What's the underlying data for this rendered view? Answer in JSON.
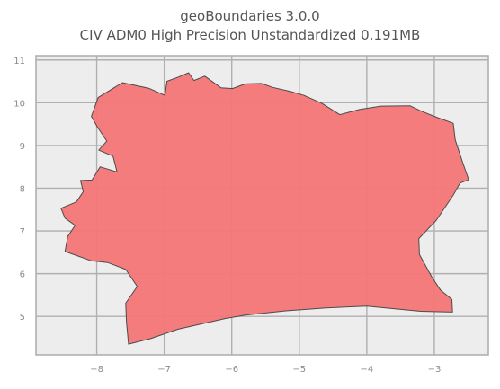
{
  "title": {
    "line1": "geoBoundaries 3.0.0",
    "line2": "CIV ADM0 High Precision Unstandardized 0.191MB"
  },
  "colors": {
    "plot_background": "#ededed",
    "grid": "#b0b0b0",
    "fill": "#f47676",
    "outline": "#4b4b4b",
    "tick_text": "#8a8a8a",
    "title_text": "#555555"
  },
  "chart_data": {
    "type": "map",
    "country": "CIV",
    "xlim": [
      -8.9,
      -2.2
    ],
    "ylim": [
      4.1,
      11.1
    ],
    "x_ticks": [
      {
        "value": -8,
        "label": "−8"
      },
      {
        "value": -7,
        "label": "−7"
      },
      {
        "value": -6,
        "label": "−6"
      },
      {
        "value": -5,
        "label": "−5"
      },
      {
        "value": -4,
        "label": "−4"
      },
      {
        "value": -3,
        "label": "−3"
      }
    ],
    "y_ticks": [
      {
        "value": 5,
        "label": "5"
      },
      {
        "value": 6,
        "label": "6"
      },
      {
        "value": 7,
        "label": "7"
      },
      {
        "value": 8,
        "label": "8"
      },
      {
        "value": 9,
        "label": "9"
      },
      {
        "value": 10,
        "label": "10"
      },
      {
        "value": 11,
        "label": "11"
      }
    ],
    "grid": true,
    "boundary": [
      [
        -6.79,
        10.6
      ],
      [
        -6.64,
        10.7
      ],
      [
        -6.56,
        10.52
      ],
      [
        -6.4,
        10.62
      ],
      [
        -6.16,
        10.35
      ],
      [
        -5.99,
        10.33
      ],
      [
        -5.8,
        10.44
      ],
      [
        -5.56,
        10.45
      ],
      [
        -5.4,
        10.36
      ],
      [
        -5.12,
        10.26
      ],
      [
        -4.93,
        10.17
      ],
      [
        -4.67,
        9.99
      ],
      [
        -4.4,
        9.72
      ],
      [
        -4.11,
        9.84
      ],
      [
        -3.79,
        9.92
      ],
      [
        -3.36,
        9.93
      ],
      [
        -3.19,
        9.8
      ],
      [
        -2.95,
        9.65
      ],
      [
        -2.72,
        9.52
      ],
      [
        -2.69,
        9.13
      ],
      [
        -2.58,
        8.6
      ],
      [
        -2.49,
        8.2
      ],
      [
        -2.62,
        8.12
      ],
      [
        -2.72,
        7.84
      ],
      [
        -2.97,
        7.25
      ],
      [
        -3.23,
        6.82
      ],
      [
        -3.22,
        6.45
      ],
      [
        -3.04,
        5.93
      ],
      [
        -2.91,
        5.62
      ],
      [
        -2.74,
        5.4
      ],
      [
        -2.73,
        5.1
      ],
      [
        -3.2,
        5.12
      ],
      [
        -3.6,
        5.18
      ],
      [
        -4.0,
        5.24
      ],
      [
        -4.6,
        5.2
      ],
      [
        -5.2,
        5.13
      ],
      [
        -5.8,
        5.03
      ],
      [
        -6.1,
        4.95
      ],
      [
        -6.8,
        4.7
      ],
      [
        -7.2,
        4.48
      ],
      [
        -7.53,
        4.35
      ],
      [
        -7.56,
        4.88
      ],
      [
        -7.57,
        5.31
      ],
      [
        -7.4,
        5.7
      ],
      [
        -7.57,
        6.1
      ],
      [
        -7.84,
        6.26
      ],
      [
        -8.08,
        6.3
      ],
      [
        -8.47,
        6.52
      ],
      [
        -8.43,
        6.87
      ],
      [
        -8.32,
        7.13
      ],
      [
        -8.47,
        7.3
      ],
      [
        -8.53,
        7.53
      ],
      [
        -8.3,
        7.68
      ],
      [
        -8.2,
        7.92
      ],
      [
        -8.24,
        8.18
      ],
      [
        -8.07,
        8.19
      ],
      [
        -7.95,
        8.5
      ],
      [
        -7.7,
        8.38
      ],
      [
        -7.76,
        8.75
      ],
      [
        -7.97,
        8.89
      ],
      [
        -7.85,
        9.1
      ],
      [
        -7.99,
        9.43
      ],
      [
        -8.08,
        9.68
      ],
      [
        -7.98,
        10.12
      ],
      [
        -7.62,
        10.47
      ],
      [
        -7.23,
        10.34
      ],
      [
        -6.99,
        10.17
      ],
      [
        -6.96,
        10.5
      ],
      [
        -6.79,
        10.6
      ]
    ]
  }
}
